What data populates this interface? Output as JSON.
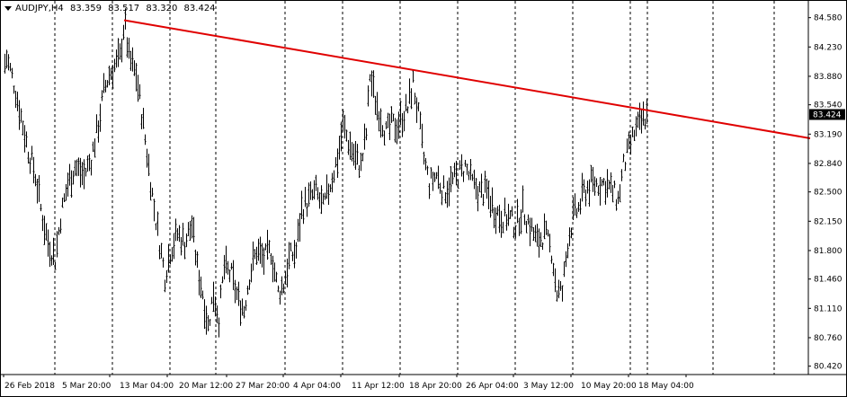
{
  "header": {
    "symbol": "AUDJPY,H4",
    "open": "83.359",
    "high": "83.517",
    "low": "83.320",
    "close": "83.424"
  },
  "colors": {
    "background": "#ffffff",
    "bars": "#000000",
    "trendline": "#e00000",
    "current_price_bg": "#000000",
    "current_price_text": "#ffffff"
  },
  "chart_data": {
    "type": "bar",
    "title": "AUDJPY,H4",
    "grid": "vertical-dashed",
    "ylim": [
      80.32,
      84.78
    ],
    "y_ticks": [
      "84.580",
      "84.230",
      "83.880",
      "83.540",
      "83.190",
      "82.840",
      "82.500",
      "82.150",
      "81.800",
      "81.460",
      "81.110",
      "80.760",
      "80.420"
    ],
    "x_ticks": [
      "26 Feb 2018",
      "5 Mar 20:00",
      "13 Mar 04:00",
      "20 Mar 12:00",
      "27 Mar 20:00",
      "4 Apr 04:00",
      "11 Apr 12:00",
      "18 Apr 20:00",
      "26 Apr 04:00",
      "3 May 12:00",
      "10 May 20:00",
      "18 May 04:00"
    ],
    "current_price": "83.424",
    "price_path": [
      [
        0,
        83.9
      ],
      [
        6,
        84.1
      ],
      [
        14,
        83.8
      ],
      [
        22,
        83.4
      ],
      [
        30,
        83.0
      ],
      [
        38,
        82.7
      ],
      [
        44,
        82.3
      ],
      [
        52,
        81.9
      ],
      [
        60,
        81.7
      ],
      [
        66,
        82.2
      ],
      [
        74,
        82.6
      ],
      [
        82,
        82.8
      ],
      [
        92,
        82.7
      ],
      [
        100,
        82.9
      ],
      [
        108,
        83.3
      ],
      [
        114,
        83.7
      ],
      [
        120,
        83.9
      ],
      [
        126,
        84.0
      ],
      [
        132,
        84.1
      ],
      [
        137,
        84.55
      ],
      [
        142,
        84.1
      ],
      [
        150,
        83.9
      ],
      [
        158,
        83.3
      ],
      [
        164,
        82.8
      ],
      [
        170,
        82.3
      ],
      [
        176,
        81.9
      ],
      [
        182,
        81.5
      ],
      [
        188,
        81.8
      ],
      [
        196,
        82.0
      ],
      [
        204,
        81.9
      ],
      [
        212,
        82.1
      ],
      [
        218,
        81.6
      ],
      [
        224,
        81.3
      ],
      [
        230,
        80.9
      ],
      [
        236,
        81.3
      ],
      [
        242,
        81.0
      ],
      [
        248,
        81.6
      ],
      [
        256,
        81.5
      ],
      [
        264,
        81.2
      ],
      [
        270,
        81.1
      ],
      [
        276,
        81.5
      ],
      [
        284,
        81.8
      ],
      [
        292,
        81.7
      ],
      [
        300,
        81.8
      ],
      [
        308,
        81.3
      ],
      [
        314,
        81.4
      ],
      [
        320,
        81.7
      ],
      [
        328,
        81.8
      ],
      [
        334,
        82.3
      ],
      [
        342,
        82.4
      ],
      [
        350,
        82.5
      ],
      [
        358,
        82.3
      ],
      [
        366,
        82.6
      ],
      [
        374,
        82.9
      ],
      [
        380,
        83.3
      ],
      [
        386,
        83.1
      ],
      [
        394,
        82.9
      ],
      [
        400,
        82.8
      ],
      [
        406,
        83.2
      ],
      [
        410,
        83.9
      ],
      [
        416,
        83.6
      ],
      [
        422,
        83.4
      ],
      [
        428,
        83.2
      ],
      [
        434,
        83.3
      ],
      [
        440,
        83.3
      ],
      [
        446,
        83.4
      ],
      [
        452,
        83.5
      ],
      [
        458,
        83.8
      ],
      [
        464,
        83.4
      ],
      [
        470,
        82.9
      ],
      [
        476,
        82.6
      ],
      [
        484,
        82.7
      ],
      [
        492,
        82.5
      ],
      [
        500,
        82.6
      ],
      [
        508,
        82.7
      ],
      [
        516,
        82.8
      ],
      [
        524,
        82.6
      ],
      [
        532,
        82.5
      ],
      [
        540,
        82.5
      ],
      [
        548,
        82.3
      ],
      [
        556,
        82.2
      ],
      [
        564,
        82.2
      ],
      [
        572,
        82.1
      ],
      [
        580,
        82.3
      ],
      [
        588,
        82.1
      ],
      [
        596,
        81.9
      ],
      [
        604,
        82.0
      ],
      [
        612,
        81.8
      ],
      [
        618,
        81.3
      ],
      [
        624,
        81.3
      ],
      [
        630,
        81.9
      ],
      [
        636,
        82.2
      ],
      [
        642,
        82.3
      ],
      [
        648,
        82.5
      ],
      [
        656,
        82.6
      ],
      [
        664,
        82.6
      ],
      [
        672,
        82.6
      ],
      [
        680,
        82.5
      ],
      [
        686,
        82.4
      ],
      [
        692,
        82.8
      ],
      [
        698,
        83.0
      ],
      [
        704,
        83.2
      ],
      [
        710,
        83.3
      ],
      [
        714,
        83.37
      ],
      [
        718,
        83.42
      ]
    ],
    "trendline": {
      "x1": 137,
      "y1": 84.55,
      "x2": 900,
      "y2": 83.14
    }
  }
}
